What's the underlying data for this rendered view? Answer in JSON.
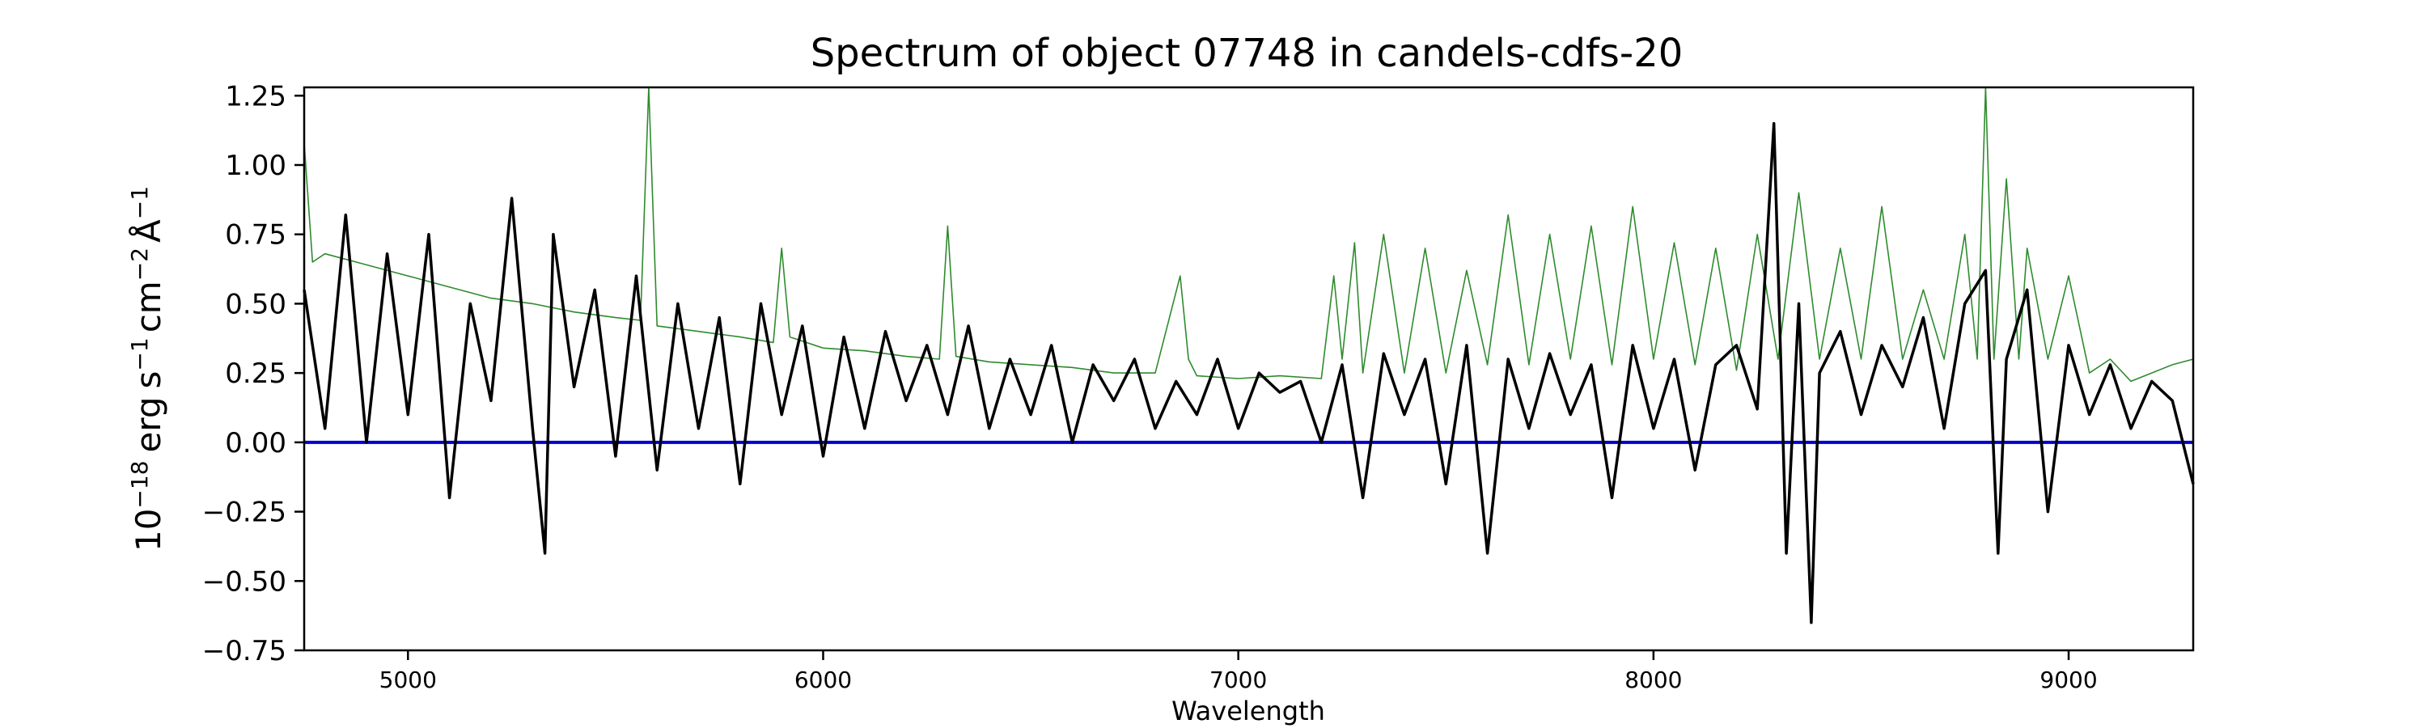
{
  "chart_data": {
    "type": "line",
    "title": "Spectrum of object 07748 in candels-cdfs-20",
    "xlabel": "Wavelength",
    "ylabel": {
      "base": "10",
      "exp": "−18",
      "s": "s",
      "s_exp": "−1",
      "cm": "cm",
      "cm_exp": "−2",
      "A": "Å",
      "A_exp": "−1",
      "erg": "erg"
    },
    "xlim": [
      4750,
      9300
    ],
    "ylim": [
      -0.75,
      1.28
    ],
    "xticks": [
      5000,
      6000,
      7000,
      8000,
      9000
    ],
    "xtick_labels": [
      "5000",
      "6000",
      "7000",
      "8000",
      "9000"
    ],
    "yticks": [
      -0.75,
      -0.5,
      -0.25,
      0.0,
      0.25,
      0.5,
      0.75,
      1.0,
      1.25
    ],
    "ytick_labels": [
      "−0.75",
      "−0.50",
      "−0.25",
      "0.00",
      "0.25",
      "0.50",
      "0.75",
      "1.00",
      "1.25"
    ],
    "grid": false,
    "series": [
      {
        "role": "flux",
        "color": "#000000",
        "x": [
          4750,
          4800,
          4850,
          4900,
          4950,
          5000,
          5050,
          5100,
          5150,
          5200,
          5250,
          5300,
          5330,
          5350,
          5400,
          5450,
          5500,
          5550,
          5600,
          5650,
          5700,
          5750,
          5800,
          5850,
          5900,
          5950,
          6000,
          6050,
          6100,
          6150,
          6200,
          6250,
          6300,
          6350,
          6400,
          6450,
          6500,
          6550,
          6600,
          6650,
          6700,
          6750,
          6800,
          6850,
          6900,
          6950,
          7000,
          7050,
          7100,
          7150,
          7200,
          7250,
          7300,
          7350,
          7400,
          7450,
          7500,
          7550,
          7600,
          7650,
          7700,
          7750,
          7800,
          7850,
          7900,
          7950,
          8000,
          8050,
          8100,
          8150,
          8200,
          8250,
          8290,
          8320,
          8350,
          8380,
          8400,
          8450,
          8500,
          8550,
          8600,
          8650,
          8700,
          8750,
          8800,
          8830,
          8850,
          8900,
          8950,
          9000,
          9050,
          9100,
          9150,
          9200,
          9250,
          9300
        ],
        "y": [
          0.55,
          0.05,
          0.82,
          0.0,
          0.68,
          0.1,
          0.75,
          -0.2,
          0.5,
          0.15,
          0.88,
          0.05,
          -0.4,
          0.75,
          0.2,
          0.55,
          -0.05,
          0.6,
          -0.1,
          0.5,
          0.05,
          0.45,
          -0.15,
          0.5,
          0.1,
          0.42,
          -0.05,
          0.38,
          0.05,
          0.4,
          0.15,
          0.35,
          0.1,
          0.42,
          0.05,
          0.3,
          0.1,
          0.35,
          0.0,
          0.28,
          0.15,
          0.3,
          0.05,
          0.22,
          0.1,
          0.3,
          0.05,
          0.25,
          0.18,
          0.22,
          0.0,
          0.28,
          -0.2,
          0.32,
          0.1,
          0.3,
          -0.15,
          0.35,
          -0.4,
          0.3,
          0.05,
          0.32,
          0.1,
          0.28,
          -0.2,
          0.35,
          0.05,
          0.3,
          -0.1,
          0.28,
          0.35,
          0.12,
          1.15,
          -0.4,
          0.5,
          -0.65,
          0.25,
          0.4,
          0.1,
          0.35,
          0.2,
          0.45,
          0.05,
          0.5,
          0.62,
          -0.4,
          0.3,
          0.55,
          -0.25,
          0.35,
          0.1,
          0.28,
          0.05,
          0.22,
          0.15,
          -0.15
        ]
      },
      {
        "role": "error",
        "color": "#2e8b2e",
        "x": [
          4750,
          4770,
          4800,
          4900,
          5000,
          5100,
          5200,
          5300,
          5400,
          5500,
          5560,
          5580,
          5600,
          5650,
          5700,
          5800,
          5880,
          5900,
          5920,
          6000,
          6100,
          6200,
          6280,
          6300,
          6320,
          6400,
          6500,
          6600,
          6700,
          6800,
          6860,
          6880,
          6900,
          7000,
          7100,
          7200,
          7230,
          7250,
          7280,
          7300,
          7350,
          7400,
          7450,
          7500,
          7550,
          7600,
          7650,
          7700,
          7750,
          7800,
          7850,
          7900,
          7950,
          8000,
          8050,
          8100,
          8150,
          8200,
          8250,
          8300,
          8350,
          8400,
          8450,
          8500,
          8550,
          8600,
          8650,
          8700,
          8750,
          8780,
          8800,
          8820,
          8850,
          8880,
          8900,
          8950,
          9000,
          9050,
          9100,
          9150,
          9200,
          9250,
          9300
        ],
        "y": [
          1.08,
          0.65,
          0.68,
          0.64,
          0.6,
          0.56,
          0.52,
          0.5,
          0.47,
          0.45,
          0.44,
          1.28,
          0.42,
          0.41,
          0.4,
          0.38,
          0.36,
          0.7,
          0.38,
          0.34,
          0.33,
          0.31,
          0.3,
          0.78,
          0.31,
          0.29,
          0.28,
          0.27,
          0.25,
          0.25,
          0.6,
          0.3,
          0.24,
          0.23,
          0.24,
          0.23,
          0.6,
          0.3,
          0.72,
          0.25,
          0.75,
          0.25,
          0.7,
          0.25,
          0.62,
          0.28,
          0.82,
          0.28,
          0.75,
          0.3,
          0.78,
          0.28,
          0.85,
          0.3,
          0.72,
          0.28,
          0.7,
          0.26,
          0.75,
          0.3,
          0.9,
          0.3,
          0.7,
          0.3,
          0.85,
          0.3,
          0.55,
          0.3,
          0.75,
          0.3,
          1.28,
          0.3,
          0.95,
          0.3,
          0.7,
          0.3,
          0.6,
          0.25,
          0.3,
          0.22,
          0.25,
          0.28,
          0.3
        ]
      },
      {
        "role": "zero",
        "color": "#0000cc",
        "x": [
          4750,
          9300
        ],
        "y": [
          0.0,
          0.0
        ]
      }
    ]
  }
}
